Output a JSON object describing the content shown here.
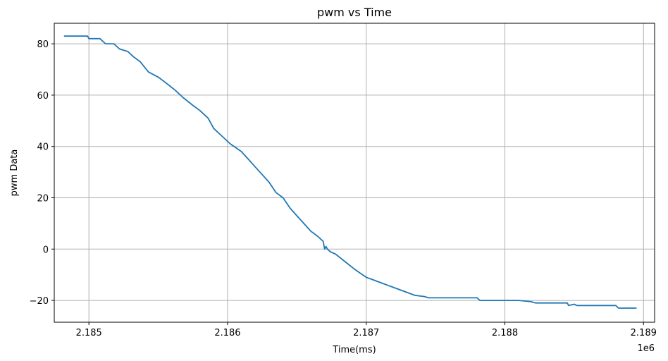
{
  "chart_data": {
    "type": "line",
    "title": "pwm vs Time",
    "xlabel": "Time(ms)",
    "ylabel": "pwm Data",
    "offset_label": "1e6",
    "grid": true,
    "xlim": [
      2184.75,
      2189.08
    ],
    "ylim": [
      -28.5,
      88
    ],
    "x_ticks": [
      2185,
      2186,
      2187,
      2188,
      2189
    ],
    "x_tick_labels": [
      "2.185",
      "2.186",
      "2.187",
      "2.188",
      "2.189"
    ],
    "y_ticks": [
      -20,
      0,
      20,
      40,
      60,
      80
    ],
    "y_tick_labels": [
      "−20",
      "0",
      "20",
      "40",
      "60",
      "80"
    ],
    "series": [
      {
        "color": "#1f77b4",
        "x": [
          2184.82,
          2184.99,
          2185.0,
          2185.08,
          2185.12,
          2185.18,
          2185.22,
          2185.28,
          2185.32,
          2185.37,
          2185.4,
          2185.43,
          2185.5,
          2185.55,
          2185.62,
          2185.68,
          2185.75,
          2185.8,
          2185.86,
          2185.9,
          2185.96,
          2186.02,
          2186.1,
          2186.15,
          2186.2,
          2186.25,
          2186.3,
          2186.35,
          2186.4,
          2186.45,
          2186.5,
          2186.55,
          2186.6,
          2186.65,
          2186.69,
          2186.7,
          2186.71,
          2186.72,
          2186.74,
          2186.78,
          2186.85,
          2186.92,
          2187.0,
          2187.05,
          2187.1,
          2187.15,
          2187.2,
          2187.25,
          2187.3,
          2187.35,
          2187.42,
          2187.45,
          2187.5,
          2187.6,
          2187.7,
          2187.8,
          2187.82,
          2187.85,
          2188.0,
          2188.1,
          2188.19,
          2188.22,
          2188.25,
          2188.35,
          2188.45,
          2188.46,
          2188.5,
          2188.52,
          2188.6,
          2188.7,
          2188.8,
          2188.82,
          2188.95
        ],
        "y": [
          83,
          83,
          82,
          82,
          80,
          80,
          78,
          77,
          75,
          73,
          71,
          69,
          67,
          65,
          62,
          59,
          56,
          54,
          51,
          47,
          44,
          41,
          38,
          35,
          32,
          29,
          26,
          22,
          20,
          16,
          13,
          10,
          7,
          5,
          3,
          0,
          1,
          0,
          -1,
          -2,
          -5,
          -8,
          -11,
          -12,
          -13,
          -14,
          -15,
          -16,
          -17,
          -18,
          -18.5,
          -19,
          -19,
          -19,
          -19,
          -19,
          -20,
          -20,
          -20,
          -20,
          -20.5,
          -21,
          -21,
          -21,
          -21,
          -22,
          -21.5,
          -22,
          -22,
          -22,
          -22,
          -23,
          -23
        ]
      }
    ]
  }
}
